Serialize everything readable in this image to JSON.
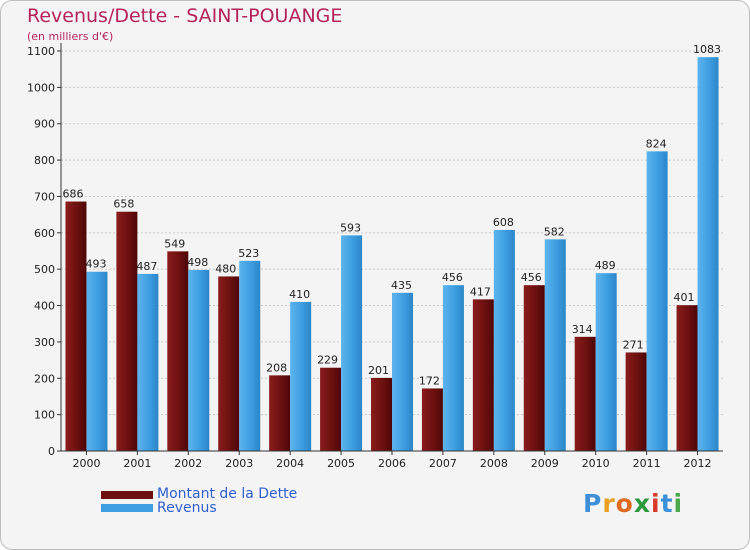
{
  "chart_data": {
    "type": "bar",
    "title": "Revenus/Dette - SAINT-POUANGE",
    "subtitle": "(en milliers d'€)",
    "xlabel": "",
    "ylabel": "",
    "ylim": [
      0,
      1100
    ],
    "yticks": [
      0,
      100,
      200,
      300,
      400,
      500,
      600,
      700,
      800,
      900,
      1000,
      1100
    ],
    "grid": true,
    "categories": [
      "2000",
      "2001",
      "2002",
      "2003",
      "2004",
      "2005",
      "2006",
      "2007",
      "2008",
      "2009",
      "2010",
      "2011",
      "2012"
    ],
    "series": [
      {
        "name": "Montant de la Dette",
        "color": "#7a1414",
        "values": [
          686,
          658,
          549,
          480,
          208,
          229,
          201,
          172,
          417,
          456,
          314,
          271,
          401
        ]
      },
      {
        "name": "Revenus",
        "color": "#3d9ee0",
        "values": [
          493,
          487,
          498,
          523,
          410,
          593,
          435,
          456,
          608,
          582,
          489,
          824,
          1083
        ]
      }
    ],
    "legend_position": "bottom-left"
  },
  "legend": {
    "debt_label": "Montant de la Dette",
    "revenue_label": "Revenus"
  },
  "logo": {
    "letters": [
      "P",
      "r",
      "o",
      "x",
      "i",
      "t",
      "i"
    ],
    "colors": [
      "#3d8fd8",
      "#e8a020",
      "#e06a20",
      "#2a9a3a",
      "#d63a2a",
      "#3d8fd8",
      "#4aa84a"
    ]
  }
}
